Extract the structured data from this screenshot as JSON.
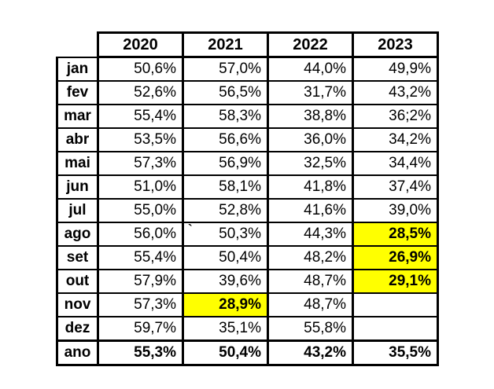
{
  "table": {
    "columns": [
      "2020",
      "2021",
      "2022",
      "2023"
    ],
    "rows": [
      {
        "label": "jan",
        "values": [
          "50,6%",
          "57,0%",
          "44,0%",
          "49,9%"
        ]
      },
      {
        "label": "fev",
        "values": [
          "52,6%",
          "56,5%",
          "31,7%",
          "43,2%"
        ]
      },
      {
        "label": "mar",
        "values": [
          "55,4%",
          "58,3%",
          "38,8%",
          "36;2%"
        ]
      },
      {
        "label": "abr",
        "values": [
          "53,5%",
          "56,6%",
          "36,0%",
          "34,2%"
        ]
      },
      {
        "label": "mai",
        "values": [
          "57,3%",
          "56,9%",
          "32,5%",
          "34,4%"
        ]
      },
      {
        "label": "jun",
        "values": [
          "51,0%",
          "58,1%",
          "41,8%",
          "37,4%"
        ]
      },
      {
        "label": "jul",
        "values": [
          "55,0%",
          "52,8%",
          "41,6%",
          "39,0%"
        ]
      },
      {
        "label": "ago",
        "values": [
          "56,0%",
          "50,3%",
          "44,3%",
          "28,5%"
        ]
      },
      {
        "label": "set",
        "values": [
          "55,4%",
          "50,4%",
          "48,2%",
          "26,9%"
        ]
      },
      {
        "label": "out",
        "values": [
          "57,9%",
          "39,6%",
          "48,7%",
          "29,1%"
        ]
      },
      {
        "label": "nov",
        "values": [
          "57,3%",
          "28,9%",
          "48,7%",
          ""
        ]
      },
      {
        "label": "dez",
        "values": [
          "59,7%",
          "35,1%",
          "55,8%",
          ""
        ]
      },
      {
        "label": "ano",
        "values": [
          "55,3%",
          "50,4%",
          "43,2%",
          "35,5%"
        ]
      }
    ],
    "highlighted_cells": [
      {
        "row": "ago",
        "column": "2023",
        "value": "28,5%"
      },
      {
        "row": "set",
        "column": "2023",
        "value": "26,9%"
      },
      {
        "row": "out",
        "column": "2023",
        "value": "29,1%"
      },
      {
        "row": "nov",
        "column": "2021",
        "value": "28,9%"
      }
    ],
    "highlight_color": "#FFFF00",
    "stray_mark": "`"
  },
  "chart_data": {
    "type": "table",
    "title": "",
    "categories": [
      "jan",
      "fev",
      "mar",
      "abr",
      "mai",
      "jun",
      "jul",
      "ago",
      "set",
      "out",
      "nov",
      "dez",
      "ano"
    ],
    "series": [
      {
        "name": "2020",
        "values": [
          50.6,
          52.6,
          55.4,
          53.5,
          57.3,
          51.0,
          55.0,
          56.0,
          55.4,
          57.9,
          57.3,
          59.7,
          55.3
        ]
      },
      {
        "name": "2021",
        "values": [
          57.0,
          56.5,
          58.3,
          56.6,
          56.9,
          58.1,
          52.8,
          50.3,
          50.4,
          39.6,
          28.9,
          35.1,
          50.4
        ]
      },
      {
        "name": "2022",
        "values": [
          44.0,
          31.7,
          38.8,
          36.0,
          32.5,
          41.8,
          41.6,
          44.3,
          48.2,
          48.7,
          48.7,
          55.8,
          43.2
        ]
      },
      {
        "name": "2023",
        "values": [
          49.9,
          43.2,
          36.2,
          34.2,
          34.4,
          37.4,
          39.0,
          28.5,
          26.9,
          29.1,
          null,
          null,
          35.5
        ]
      }
    ],
    "unit": "%",
    "notes": "Yellow highlighted cells: 2021-nov, 2023-ago, 2023-set, 2023-out; 2023 nov and dez are empty; 'ano' row is the yearly total (bold)."
  }
}
